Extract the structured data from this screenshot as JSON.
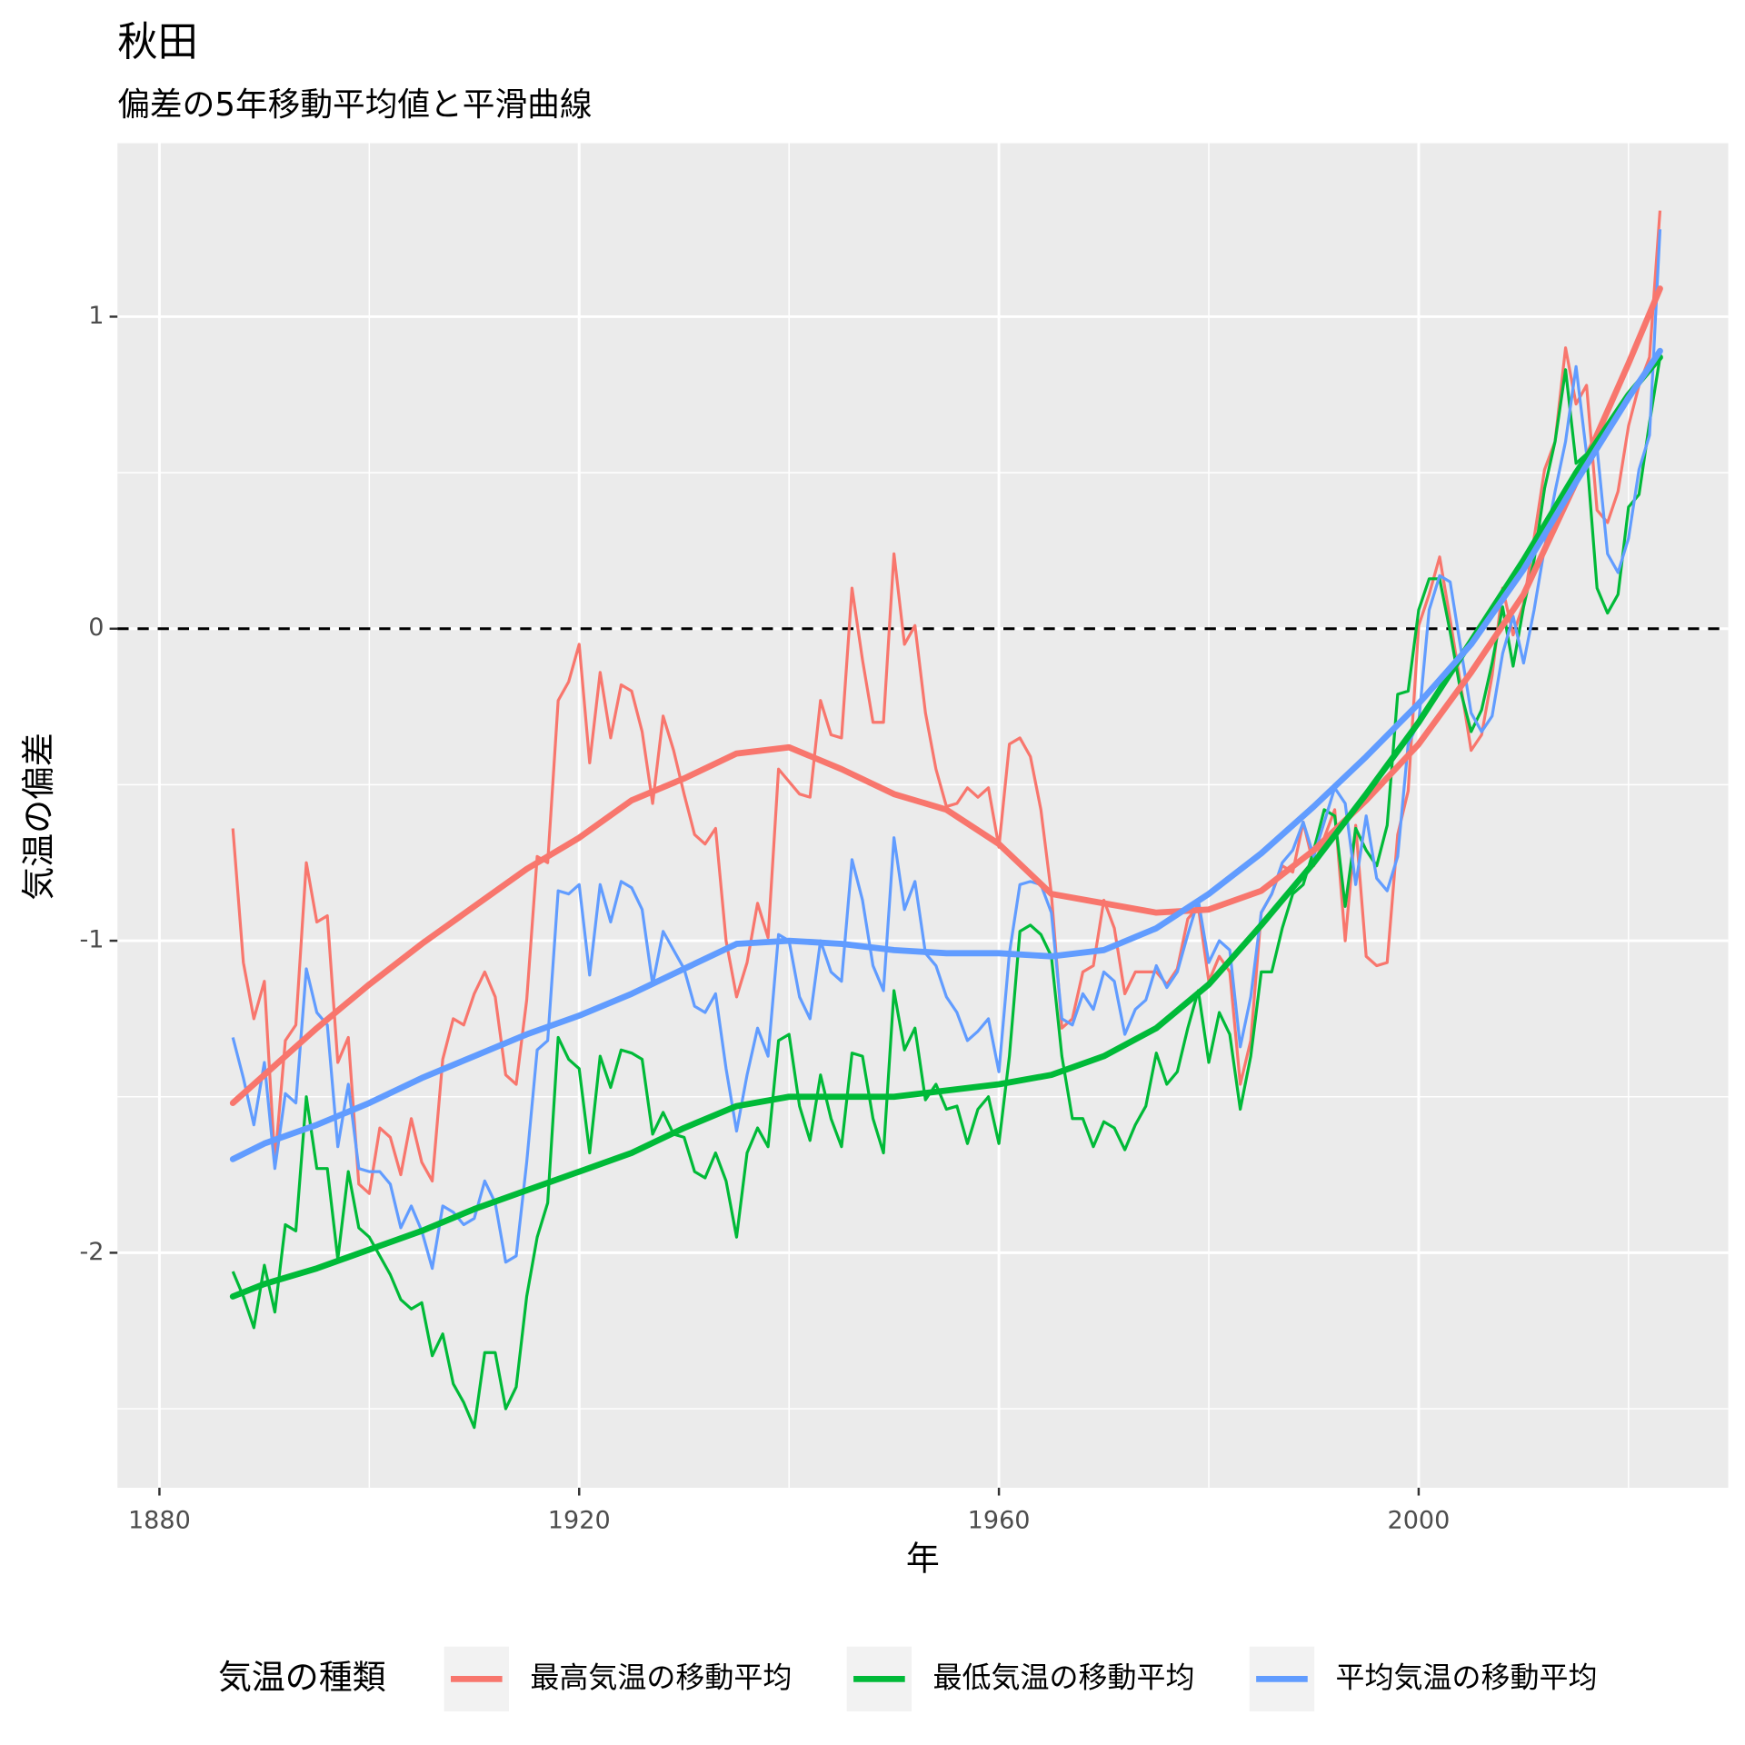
{
  "chart_data": {
    "type": "line",
    "title": "秋田",
    "subtitle": "偏差の5年移動平均値と平滑曲線",
    "xlabel": "年",
    "ylabel": "気温の偏差",
    "legend_title": "気温の種類",
    "legend": "bottom",
    "grid": true,
    "hline": 0,
    "xlim": [
      1876,
      2029.5
    ],
    "ylim": [
      -2.753,
      1.556
    ],
    "xticks": [
      1880,
      1920,
      1960,
      2000
    ],
    "yticks": [
      -2,
      -1,
      0,
      1
    ],
    "xminor": [
      1900,
      1940,
      1980,
      2020
    ],
    "yminor": [
      -2.5,
      -1.5,
      -0.5,
      0.5
    ],
    "x": [
      1887,
      1888,
      1889,
      1890,
      1891,
      1892,
      1893,
      1894,
      1895,
      1896,
      1897,
      1898,
      1899,
      1900,
      1901,
      1902,
      1903,
      1904,
      1905,
      1906,
      1907,
      1908,
      1909,
      1910,
      1911,
      1912,
      1913,
      1914,
      1915,
      1916,
      1917,
      1918,
      1919,
      1920,
      1921,
      1922,
      1923,
      1924,
      1925,
      1926,
      1927,
      1928,
      1929,
      1930,
      1931,
      1932,
      1933,
      1934,
      1935,
      1936,
      1937,
      1938,
      1939,
      1940,
      1941,
      1942,
      1943,
      1944,
      1945,
      1946,
      1947,
      1948,
      1949,
      1950,
      1951,
      1952,
      1953,
      1954,
      1955,
      1956,
      1957,
      1958,
      1959,
      1960,
      1961,
      1962,
      1963,
      1964,
      1965,
      1966,
      1967,
      1968,
      1969,
      1970,
      1971,
      1972,
      1973,
      1974,
      1975,
      1976,
      1977,
      1978,
      1979,
      1980,
      1981,
      1982,
      1983,
      1984,
      1985,
      1986,
      1987,
      1988,
      1989,
      1990,
      1991,
      1992,
      1993,
      1994,
      1995,
      1996,
      1997,
      1998,
      1999,
      2000,
      2001,
      2002,
      2003,
      2004,
      2005,
      2006,
      2007,
      2008,
      2009,
      2010,
      2011,
      2012,
      2013,
      2014,
      2015,
      2016,
      2017,
      2018,
      2019,
      2020,
      2021,
      2022,
      2023
    ],
    "smooth_x": [
      1887,
      1890,
      1895,
      1900,
      1905,
      1910,
      1915,
      1920,
      1925,
      1930,
      1935,
      1940,
      1945,
      1950,
      1955,
      1960,
      1965,
      1970,
      1975,
      1980,
      1985,
      1990,
      1995,
      2000,
      2005,
      2010,
      2015,
      2020,
      2023
    ],
    "series": [
      {
        "name": "最高気温の移動平均",
        "color": "#F8766D",
        "values": [
          -0.64,
          -1.07,
          -1.25,
          -1.13,
          -1.71,
          -1.32,
          -1.27,
          -0.75,
          -0.94,
          -0.92,
          -1.39,
          -1.31,
          -1.78,
          -1.81,
          -1.6,
          -1.63,
          -1.75,
          -1.57,
          -1.71,
          -1.77,
          -1.38,
          -1.25,
          -1.27,
          -1.17,
          -1.1,
          -1.18,
          -1.43,
          -1.46,
          -1.19,
          -0.73,
          -0.75,
          -0.23,
          -0.17,
          -0.05,
          -0.43,
          -0.14,
          -0.35,
          -0.18,
          -0.2,
          -0.33,
          -0.56,
          -0.28,
          -0.39,
          -0.53,
          -0.66,
          -0.69,
          -0.64,
          -1.0,
          -1.18,
          -1.07,
          -0.88,
          -0.99,
          -0.45,
          -0.49,
          -0.53,
          -0.54,
          -0.23,
          -0.34,
          -0.35,
          0.13,
          -0.1,
          -0.3,
          -0.3,
          0.24,
          -0.05,
          0.01,
          -0.27,
          -0.45,
          -0.57,
          -0.56,
          -0.51,
          -0.54,
          -0.51,
          -0.7,
          -0.37,
          -0.35,
          -0.41,
          -0.58,
          -0.85,
          -1.28,
          -1.25,
          -1.1,
          -1.08,
          -0.87,
          -0.96,
          -1.17,
          -1.1,
          -1.1,
          -1.1,
          -1.14,
          -1.09,
          -0.93,
          -0.89,
          -1.13,
          -1.05,
          -1.1,
          -1.46,
          -1.32,
          -0.91,
          -0.85,
          -0.76,
          -0.78,
          -0.62,
          -0.76,
          -0.67,
          -0.58,
          -1.0,
          -0.63,
          -1.05,
          -1.08,
          -1.07,
          -0.66,
          -0.52,
          0.01,
          0.11,
          0.23,
          0.03,
          -0.18,
          -0.39,
          -0.34,
          -0.15,
          0.13,
          -0.02,
          0.08,
          0.29,
          0.51,
          0.6,
          0.9,
          0.72,
          0.78,
          0.38,
          0.34,
          0.44,
          0.65,
          0.78,
          0.87,
          1.34
        ],
        "smooth": [
          -1.52,
          -1.43,
          -1.28,
          -1.14,
          -1.01,
          -0.89,
          -0.77,
          -0.67,
          -0.55,
          -0.48,
          -0.4,
          -0.38,
          -0.45,
          -0.53,
          -0.58,
          -0.69,
          -0.85,
          -0.88,
          -0.91,
          -0.9,
          -0.84,
          -0.71,
          -0.55,
          -0.37,
          -0.14,
          0.11,
          0.47,
          0.85,
          1.09
        ]
      },
      {
        "name": "最低気温の移動平均",
        "color": "#00BA38",
        "values": [
          -2.06,
          -2.14,
          -2.24,
          -2.04,
          -2.19,
          -1.91,
          -1.93,
          -1.5,
          -1.73,
          -1.73,
          -2.02,
          -1.74,
          -1.92,
          -1.95,
          -2.01,
          -2.07,
          -2.15,
          -2.18,
          -2.16,
          -2.33,
          -2.26,
          -2.42,
          -2.48,
          -2.56,
          -2.32,
          -2.32,
          -2.5,
          -2.43,
          -2.14,
          -1.95,
          -1.84,
          -1.31,
          -1.38,
          -1.41,
          -1.68,
          -1.37,
          -1.47,
          -1.35,
          -1.36,
          -1.38,
          -1.62,
          -1.55,
          -1.62,
          -1.63,
          -1.74,
          -1.76,
          -1.68,
          -1.77,
          -1.95,
          -1.68,
          -1.6,
          -1.66,
          -1.32,
          -1.3,
          -1.53,
          -1.64,
          -1.43,
          -1.57,
          -1.66,
          -1.36,
          -1.37,
          -1.57,
          -1.68,
          -1.16,
          -1.35,
          -1.28,
          -1.51,
          -1.46,
          -1.54,
          -1.53,
          -1.65,
          -1.54,
          -1.5,
          -1.65,
          -1.37,
          -0.97,
          -0.95,
          -0.98,
          -1.05,
          -1.37,
          -1.57,
          -1.57,
          -1.66,
          -1.58,
          -1.6,
          -1.67,
          -1.59,
          -1.53,
          -1.36,
          -1.46,
          -1.42,
          -1.28,
          -1.16,
          -1.39,
          -1.23,
          -1.3,
          -1.54,
          -1.37,
          -1.1,
          -1.1,
          -0.96,
          -0.85,
          -0.82,
          -0.71,
          -0.58,
          -0.6,
          -0.89,
          -0.64,
          -0.71,
          -0.76,
          -0.63,
          -0.21,
          -0.2,
          0.06,
          0.16,
          0.16,
          -0.01,
          -0.2,
          -0.33,
          -0.26,
          -0.11,
          0.07,
          -0.12,
          0.07,
          0.22,
          0.45,
          0.6,
          0.83,
          0.53,
          0.56,
          0.13,
          0.05,
          0.11,
          0.39,
          0.43,
          0.66,
          0.87
        ],
        "smooth": [
          -2.14,
          -2.1,
          -2.05,
          -1.99,
          -1.93,
          -1.86,
          -1.8,
          -1.74,
          -1.68,
          -1.6,
          -1.53,
          -1.5,
          -1.5,
          -1.5,
          -1.48,
          -1.46,
          -1.43,
          -1.37,
          -1.28,
          -1.14,
          -0.95,
          -0.75,
          -0.53,
          -0.3,
          -0.04,
          0.22,
          0.5,
          0.75,
          0.87
        ]
      },
      {
        "name": "平均気温の移動平均",
        "color": "#619CFF",
        "values": [
          -1.31,
          -1.44,
          -1.59,
          -1.39,
          -1.73,
          -1.49,
          -1.52,
          -1.09,
          -1.23,
          -1.27,
          -1.66,
          -1.46,
          -1.73,
          -1.74,
          -1.74,
          -1.78,
          -1.92,
          -1.85,
          -1.93,
          -2.05,
          -1.85,
          -1.87,
          -1.91,
          -1.89,
          -1.77,
          -1.84,
          -2.03,
          -2.01,
          -1.71,
          -1.35,
          -1.32,
          -0.84,
          -0.85,
          -0.82,
          -1.11,
          -0.82,
          -0.94,
          -0.81,
          -0.83,
          -0.9,
          -1.14,
          -0.97,
          -1.03,
          -1.09,
          -1.21,
          -1.23,
          -1.17,
          -1.41,
          -1.61,
          -1.43,
          -1.28,
          -1.37,
          -0.98,
          -1.0,
          -1.18,
          -1.25,
          -1.0,
          -1.1,
          -1.13,
          -0.74,
          -0.87,
          -1.08,
          -1.16,
          -0.67,
          -0.9,
          -0.81,
          -1.04,
          -1.08,
          -1.18,
          -1.23,
          -1.32,
          -1.29,
          -1.25,
          -1.42,
          -1.04,
          -0.82,
          -0.81,
          -0.82,
          -0.91,
          -1.25,
          -1.27,
          -1.17,
          -1.22,
          -1.1,
          -1.13,
          -1.3,
          -1.22,
          -1.19,
          -1.08,
          -1.15,
          -1.1,
          -0.98,
          -0.87,
          -1.07,
          -1.0,
          -1.03,
          -1.34,
          -1.18,
          -0.91,
          -0.85,
          -0.75,
          -0.71,
          -0.62,
          -0.73,
          -0.62,
          -0.51,
          -0.56,
          -0.82,
          -0.6,
          -0.8,
          -0.84,
          -0.73,
          -0.37,
          -0.3,
          0.06,
          0.17,
          0.15,
          -0.06,
          -0.27,
          -0.33,
          -0.28,
          -0.08,
          0.04,
          -0.11,
          0.06,
          0.26,
          0.44,
          0.6,
          0.84,
          0.56,
          0.58,
          0.24,
          0.18,
          0.29,
          0.51,
          0.62,
          1.28
        ],
        "smooth": [
          -1.7,
          -1.65,
          -1.59,
          -1.52,
          -1.44,
          -1.37,
          -1.3,
          -1.24,
          -1.17,
          -1.09,
          -1.01,
          -1.0,
          -1.01,
          -1.03,
          -1.04,
          -1.04,
          -1.05,
          -1.03,
          -0.96,
          -0.85,
          -0.72,
          -0.57,
          -0.41,
          -0.24,
          -0.05,
          0.19,
          0.47,
          0.74,
          0.89
        ]
      }
    ]
  }
}
